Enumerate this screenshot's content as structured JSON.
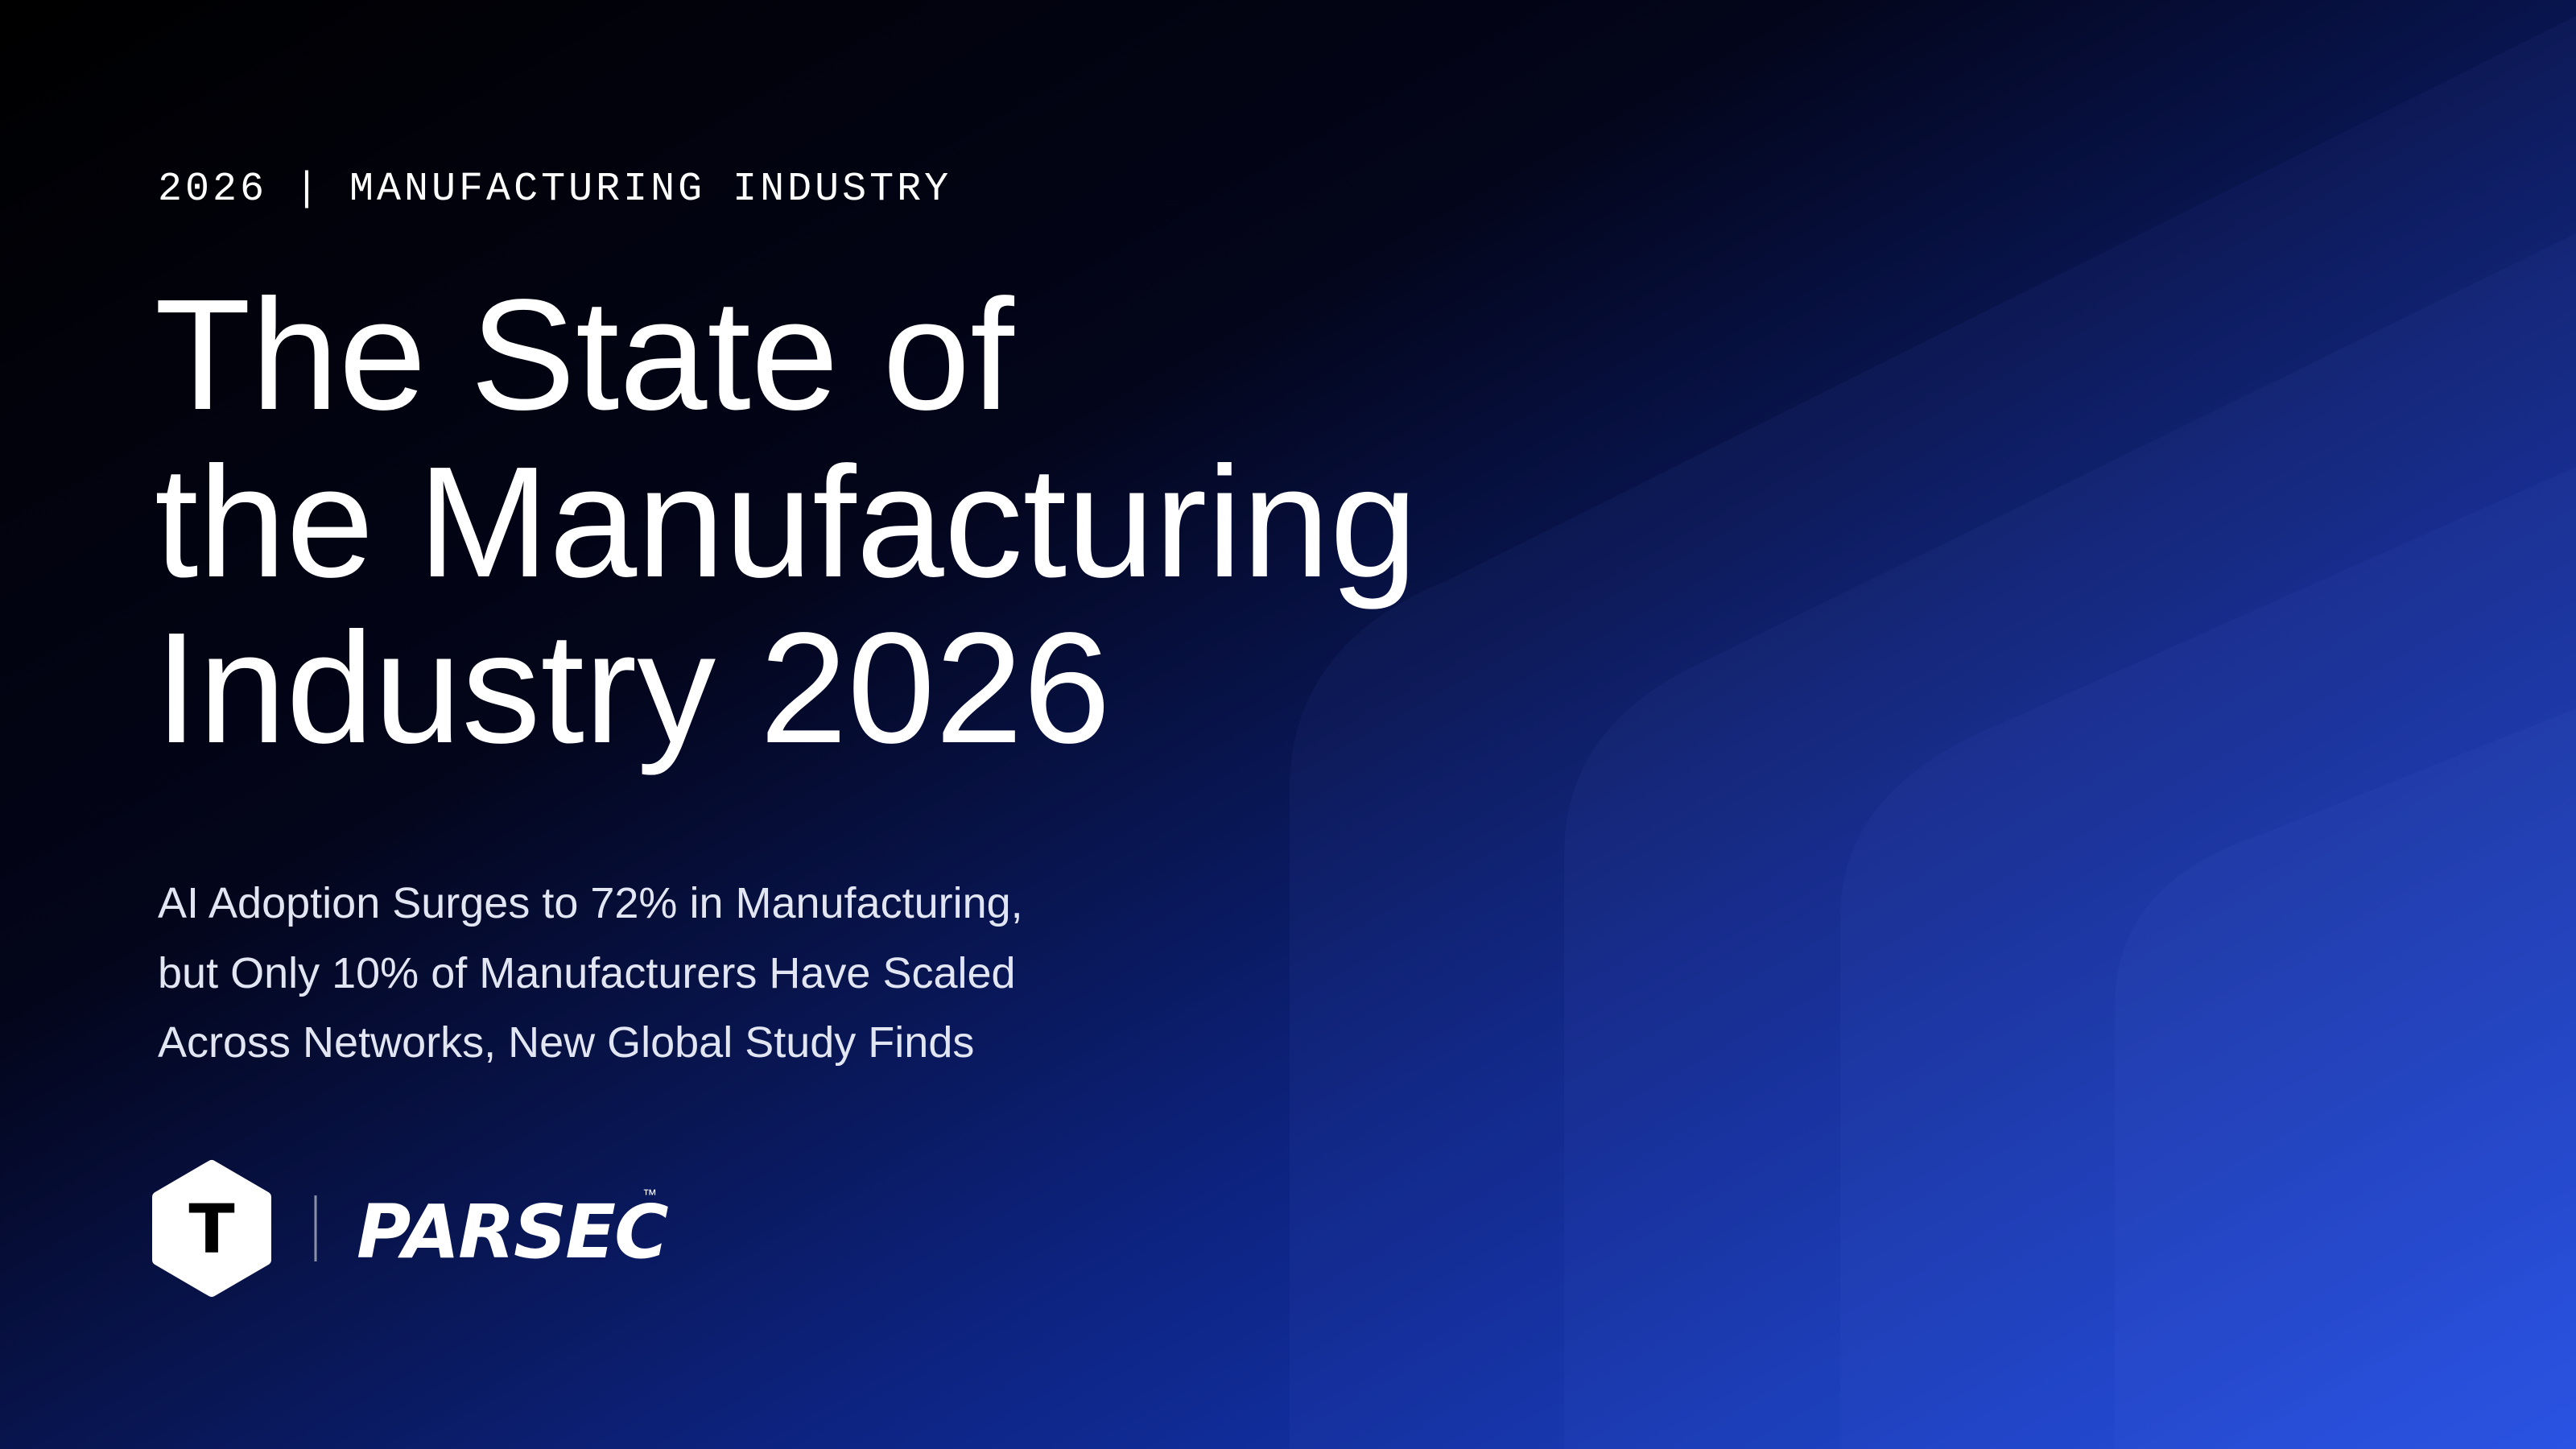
{
  "header": {
    "eyebrow": "2026 | MANUFACTURING INDUSTRY"
  },
  "title": {
    "lines": [
      "The State of",
      "the Manufacturing",
      "Industry 2026"
    ]
  },
  "subtitle": {
    "lines": [
      "AI Adoption Surges to 72% in Manufacturing,",
      "but Only 10% of Manufacturers Have Scaled",
      "Across Networks, New Global Study Finds"
    ]
  },
  "logos": {
    "mark_letter": "T",
    "brand": "PARSEC",
    "trademark": "™"
  }
}
